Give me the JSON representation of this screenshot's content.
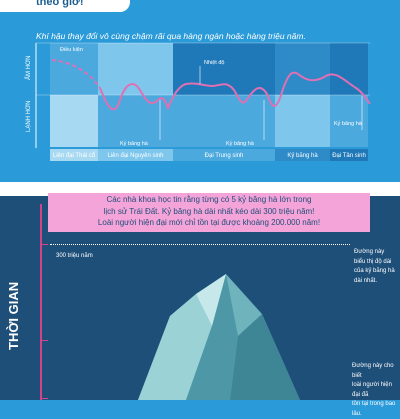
{
  "header": {
    "title_tail": "theo giờ!"
  },
  "intro": "Khí hậu thay đổi vô cùng chậm rãi qua hàng ngàn hoặc hàng triệu năm.",
  "chart": {
    "warmer_label": "ẤM HƠN",
    "colder_label": "LẠNH HƠN",
    "eras": [
      "Liên đại Thái cổ",
      "Liên đại Nguyên sinh",
      "Đại Trung sinh",
      "Kỷ băng hà",
      "Đại Tân sinh"
    ],
    "annotations": {
      "unknown": "Điều kiện",
      "temperature": "Nhiệt độ",
      "ice_age_1": "Kỷ băng hà",
      "ice_age_2": "Kỷ băng hà",
      "ice_age_3": "Kỷ băng hà"
    },
    "colors": {
      "temperature_line": "#e070b4",
      "dashed": "#e070b4"
    }
  },
  "callout": {
    "line1": "Các nhà khoa học tin rằng từng có 5 kỷ băng hà lớn trong",
    "line2": "lịch sử Trái Đất. Kỷ băng hà dài nhất kéo dài 300 triệu năm!",
    "line3": "Loài người hiện đại mới chỉ tồn tại được khoảng 200.000 năm!"
  },
  "timeline": {
    "axis_title": "THỜI GIAN",
    "marker_300m": "300 triệu năm"
  },
  "notes": {
    "longest_ice_age": [
      "Đường này",
      "biểu thị độ dài",
      "của kỷ băng hà",
      "dài nhất."
    ],
    "humans": [
      "Đường này cho biết",
      "loài người hiện đại đã",
      "tồn tại trong bao lâu."
    ]
  }
}
